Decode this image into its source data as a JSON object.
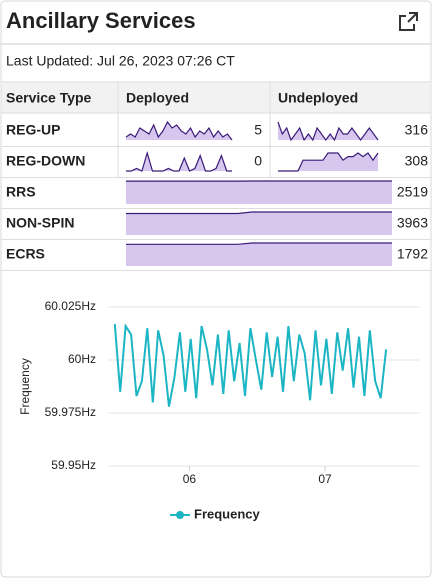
{
  "header": {
    "title": "Ancillary Services",
    "last_updated": "Last Updated: Jul 26, 2023 07:26 CT"
  },
  "table": {
    "columns": [
      "Service Type",
      "Deployed",
      "Undeployed"
    ],
    "rows": [
      {
        "service": "REG-UP",
        "deployed": 5,
        "deployed_trend": [
          2,
          3,
          2,
          5,
          4,
          3,
          6,
          2,
          4,
          7,
          5,
          6,
          4,
          3,
          5,
          2,
          4,
          3,
          5,
          2,
          4,
          2,
          3,
          1
        ],
        "undeployed": 316,
        "undeployed_trend": [
          8,
          6,
          7,
          5,
          6,
          7,
          5,
          6,
          5,
          7,
          6,
          5,
          6,
          5,
          7,
          6,
          6,
          7,
          6,
          5,
          6,
          7,
          6,
          5
        ]
      },
      {
        "service": "REG-DOWN",
        "deployed": 0,
        "deployed_trend": [
          0,
          0,
          1,
          0,
          7,
          0,
          0,
          0,
          1,
          0,
          0,
          5,
          0,
          1,
          6,
          0,
          0,
          1,
          6,
          0,
          0
        ],
        "undeployed": 308,
        "undeployed_trend": [
          3,
          3,
          3,
          3,
          3,
          6,
          6,
          6,
          6,
          6,
          8,
          8,
          8,
          6,
          7,
          7,
          8,
          7,
          8,
          6,
          8
        ]
      },
      {
        "service": "RRS",
        "total": 2519,
        "trend": [
          2505,
          2505,
          2505,
          2505,
          2505,
          2505,
          2505,
          2505,
          2505,
          2519,
          2519,
          2519,
          2519,
          2519,
          2519,
          2519,
          2519,
          2519,
          2519,
          2519
        ]
      },
      {
        "service": "NON-SPIN",
        "total": 3963,
        "trend": [
          3700,
          3700,
          3700,
          3700,
          3700,
          3700,
          3700,
          3700,
          3700,
          3963,
          3963,
          3963,
          3963,
          3963,
          3963,
          3963,
          3963,
          3963,
          3963,
          3963
        ]
      },
      {
        "service": "ECRS",
        "total": 1792,
        "trend": [
          1690,
          1690,
          1690,
          1690,
          1690,
          1690,
          1690,
          1690,
          1690,
          1792,
          1792,
          1792,
          1792,
          1792,
          1792,
          1792,
          1792,
          1792,
          1792,
          1792
        ]
      }
    ]
  },
  "chart_data": {
    "type": "line",
    "ylabel": "Frequency",
    "x": [
      5.45,
      5.49,
      5.53,
      5.57,
      5.61,
      5.65,
      5.69,
      5.73,
      5.77,
      5.81,
      5.85,
      5.89,
      5.93,
      5.97,
      6.01,
      6.05,
      6.09,
      6.13,
      6.17,
      6.21,
      6.25,
      6.29,
      6.33,
      6.37,
      6.41,
      6.45,
      6.49,
      6.53,
      6.57,
      6.61,
      6.65,
      6.69,
      6.73,
      6.77,
      6.81,
      6.85,
      6.89,
      6.93,
      6.97,
      7.01,
      7.05,
      7.09,
      7.13,
      7.17,
      7.21,
      7.25,
      7.29,
      7.33,
      7.37,
      7.41,
      7.45
    ],
    "series": [
      {
        "name": "Frequency",
        "color": "#1cb5c4",
        "values": [
          60.017,
          59.985,
          60.016,
          60.012,
          59.983,
          59.99,
          60.015,
          59.98,
          60.014,
          60.002,
          59.978,
          59.992,
          60.013,
          59.985,
          60.01,
          59.982,
          60.016,
          60.005,
          59.988,
          60.012,
          59.984,
          60.014,
          59.99,
          60.008,
          59.983,
          60.015,
          60.0,
          59.986,
          60.013,
          59.992,
          60.011,
          59.985,
          60.016,
          59.99,
          60.012,
          60.003,
          59.981,
          60.014,
          59.988,
          60.01,
          59.984,
          60.013,
          59.995,
          60.015,
          59.987,
          60.011,
          59.983,
          60.014,
          59.99,
          59.982,
          60.005
        ]
      }
    ],
    "xlim": [
      5.4,
      7.7
    ],
    "xticks": [
      {
        "value": 6,
        "label": "06"
      },
      {
        "value": 7,
        "label": "07"
      }
    ],
    "ylim": [
      59.95,
      60.025
    ],
    "yticks": [
      {
        "value": 59.95,
        "label": "59.95Hz"
      },
      {
        "value": 59.975,
        "label": "59.975Hz"
      },
      {
        "value": 60,
        "label": "60Hz"
      },
      {
        "value": 60.025,
        "label": "60.025Hz"
      }
    ],
    "grid": true,
    "legend": "bottom"
  }
}
